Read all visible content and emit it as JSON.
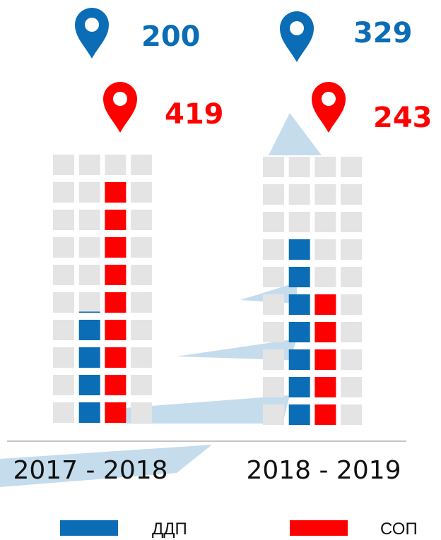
{
  "chart_data": {
    "type": "waffle-bar",
    "categories": [
      "2017 - 2018",
      "2018 - 2019"
    ],
    "series": [
      {
        "name": "ДДП",
        "color": "#0a6db5",
        "values": [
          200,
          329
        ]
      },
      {
        "name": "СОП",
        "color": "#fe0000",
        "values": [
          419,
          243
        ]
      }
    ]
  }
}
